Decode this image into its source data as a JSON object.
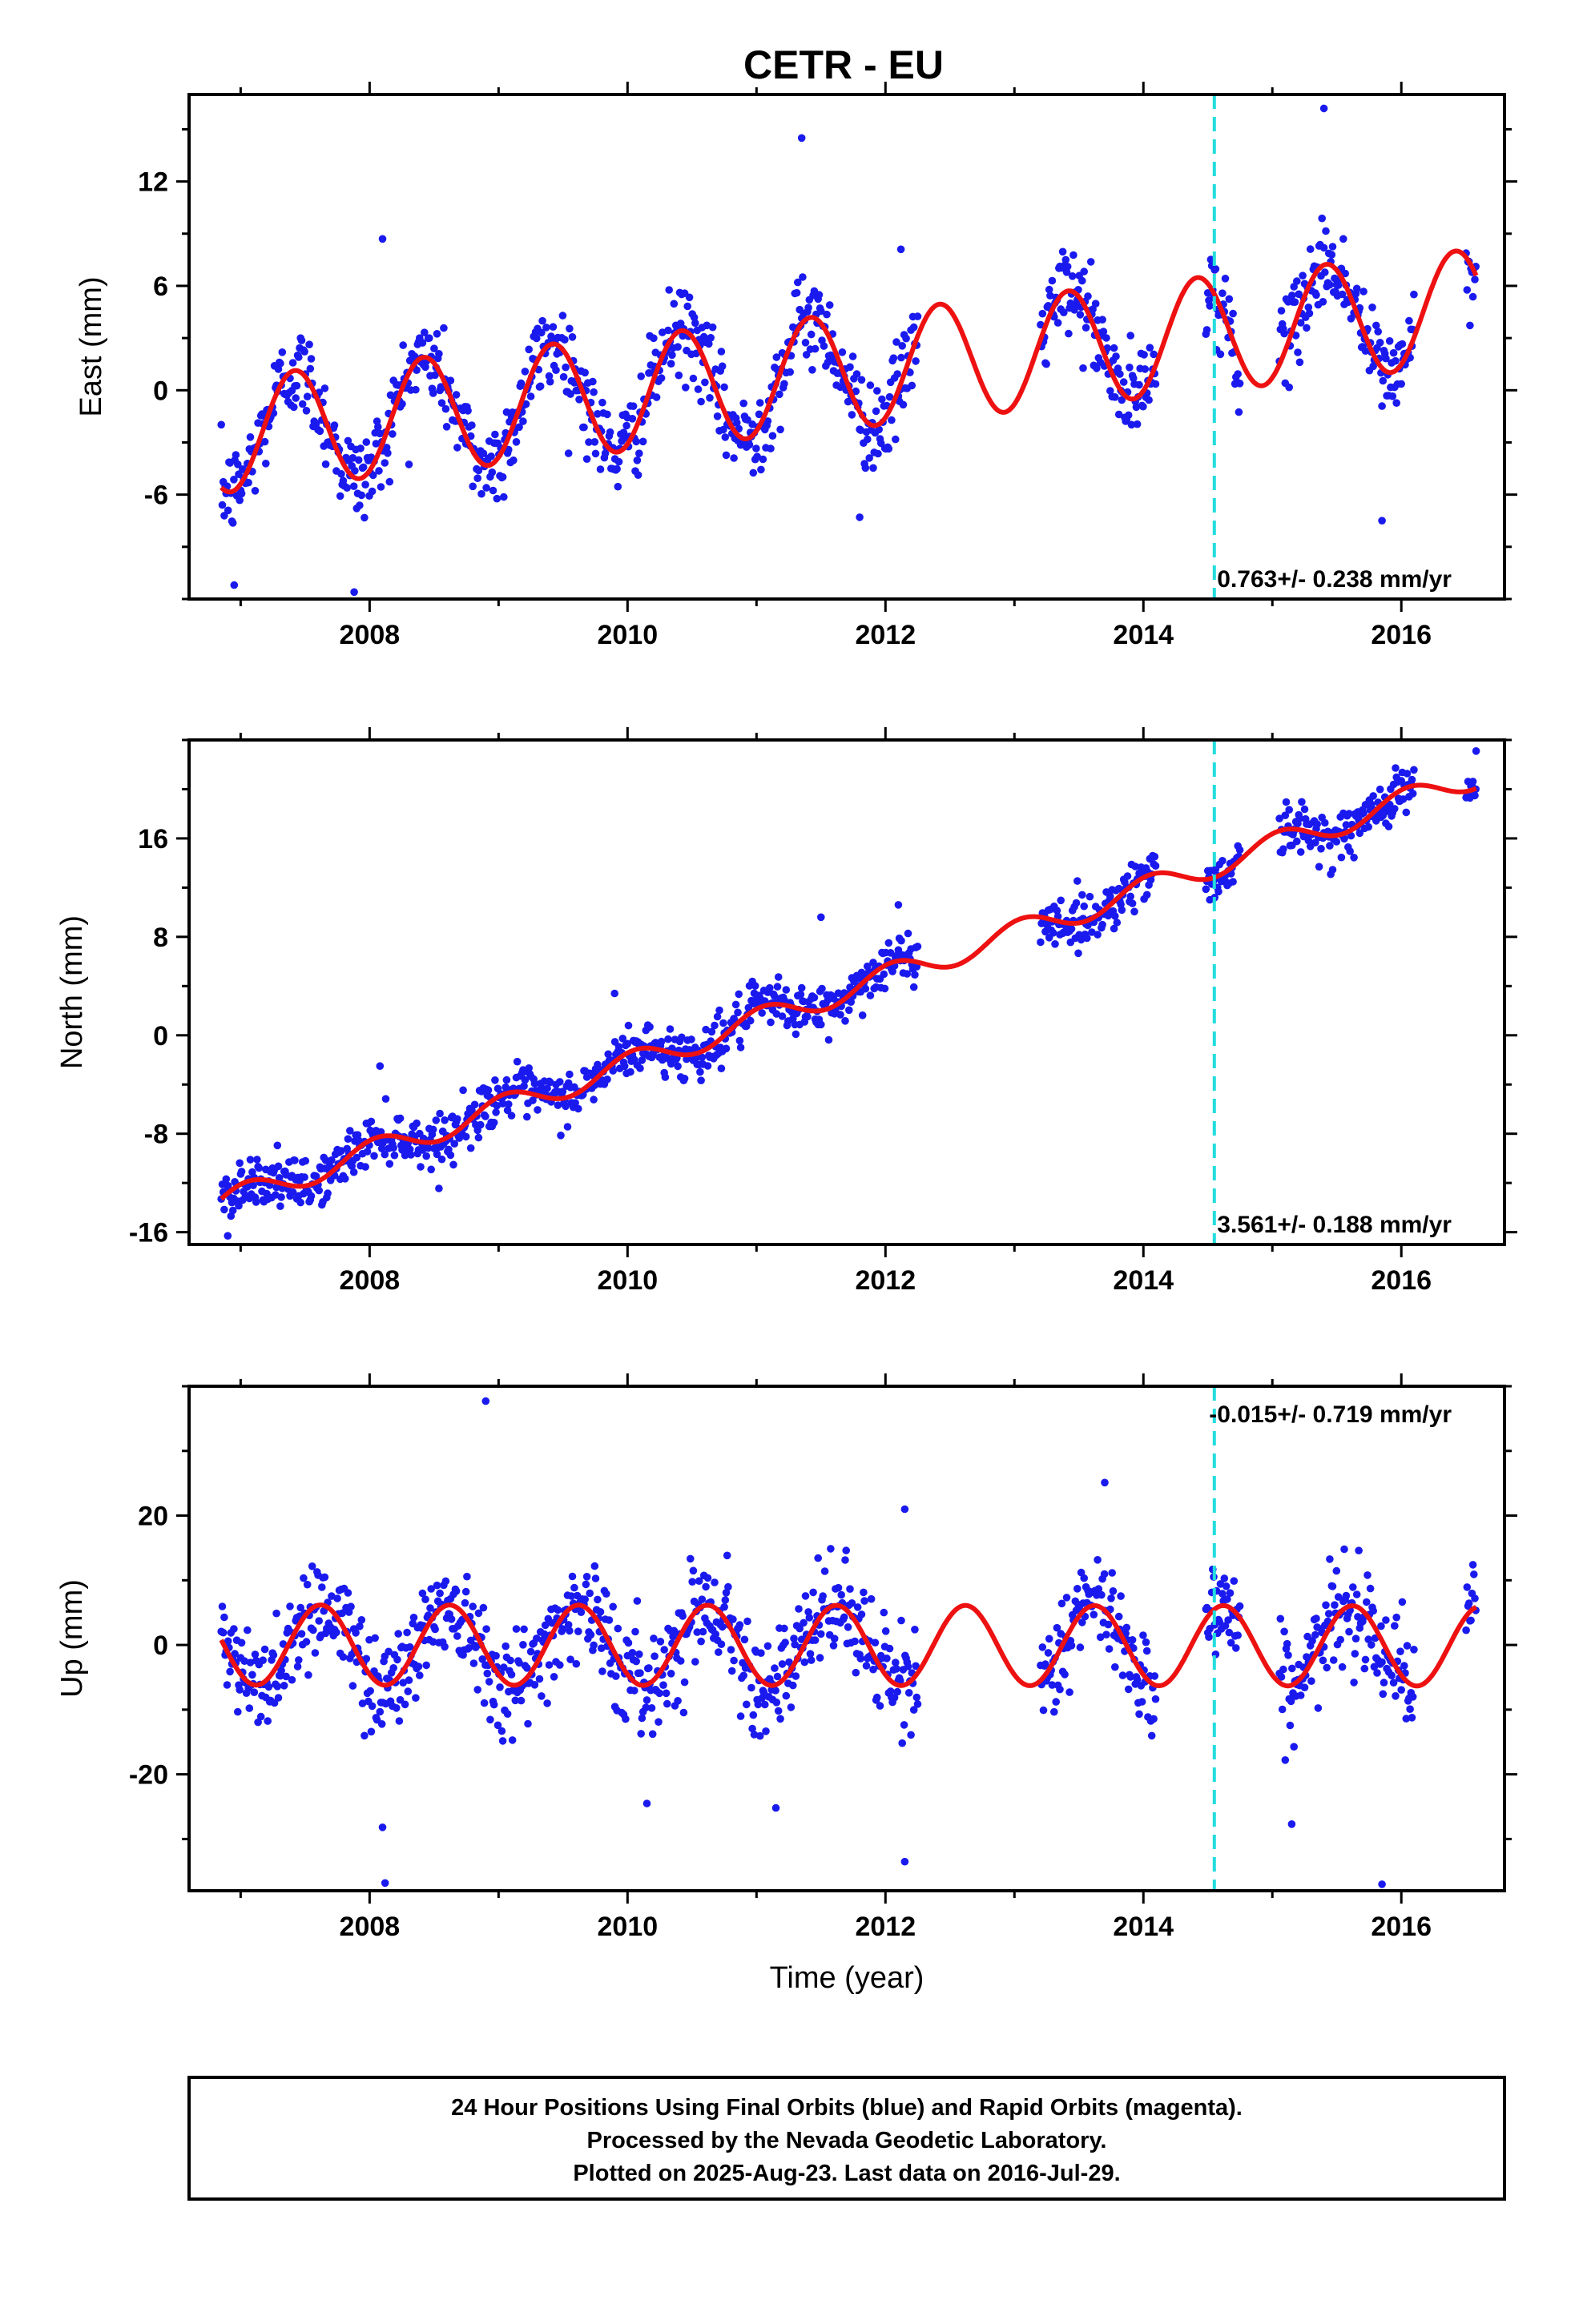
{
  "title": "CETR - EU",
  "colors": {
    "final_orbits": "#1a1aee",
    "model": "#ee1111",
    "event_line": "#22dddd",
    "frame": "#000000"
  },
  "chart_data": [
    {
      "type": "scatter",
      "id": "east",
      "ylabel": "East (mm)",
      "xlabel": "",
      "xlim": [
        2006.6,
        2016.8
      ],
      "ylim": [
        -12,
        17
      ],
      "xticks": [
        2008,
        2010,
        2012,
        2014,
        2016
      ],
      "xtick_labels": [
        "2008",
        "2010",
        "2012",
        "2014",
        "2016"
      ],
      "yticks": [
        -6,
        0,
        6,
        12
      ],
      "ytick_labels": [
        "-6",
        "0",
        "6",
        "12"
      ],
      "rate": "0.763+/- 0.238 mm/yr",
      "rate_position": "bottom-right",
      "event_line_x": 2014.55,
      "model": {
        "mean_at_start": -2.6,
        "slope_mm_per_yr": 0.763,
        "annual_amplitude": 3.3,
        "annual_peak_fraction": 0.42
      },
      "data_gaps": [
        [
          2012.25,
          2013.2
        ],
        [
          2014.1,
          2014.48
        ],
        [
          2014.75,
          2015.05
        ],
        [
          2016.1,
          2016.5
        ]
      ],
      "observed_range": [
        2006.85,
        2016.58
      ],
      "scatter_sigma": 1.3,
      "outliers": [
        [
          2008.1,
          8.7
        ],
        [
          2011.35,
          14.5
        ],
        [
          2015.4,
          16.2
        ],
        [
          2007.88,
          -11.6
        ],
        [
          2006.95,
          -11.2
        ],
        [
          2012.12,
          8.1
        ],
        [
          2011.8,
          -7.3
        ],
        [
          2015.85,
          -7.5
        ]
      ]
    },
    {
      "type": "scatter",
      "id": "north",
      "ylabel": "North (mm)",
      "xlabel": "",
      "xlim": [
        2006.6,
        2016.8
      ],
      "ylim": [
        -17,
        24
      ],
      "xticks": [
        2008,
        2010,
        2012,
        2014,
        2016
      ],
      "xtick_labels": [
        "2008",
        "2010",
        "2012",
        "2014",
        "2016"
      ],
      "yticks": [
        -16,
        -8,
        0,
        8,
        16
      ],
      "ytick_labels": [
        "-16",
        "-8",
        "0",
        "8",
        "16"
      ],
      "rate": "3.561+/- 0.188 mm/yr",
      "rate_position": "bottom-right",
      "event_line_x": 2014.55,
      "model": {
        "mean_at_start": -13.6,
        "slope_mm_per_yr": 3.561,
        "annual_amplitude": 1.0,
        "annual_peak_fraction": 0.05
      },
      "data_gaps": [
        [
          2012.25,
          2013.2
        ],
        [
          2014.1,
          2014.48
        ],
        [
          2014.75,
          2015.05
        ],
        [
          2016.1,
          2016.5
        ]
      ],
      "observed_range": [
        2006.85,
        2016.58
      ],
      "scatter_sigma": 1.0,
      "outliers": [
        [
          2008.08,
          -2.5
        ],
        [
          2011.5,
          9.6
        ],
        [
          2012.1,
          10.6
        ],
        [
          2009.9,
          3.4
        ],
        [
          2016.58,
          23.1
        ],
        [
          2006.9,
          -16.3
        ]
      ]
    },
    {
      "type": "scatter",
      "id": "up",
      "ylabel": "Up (mm)",
      "xlabel": "Time (year)",
      "xlim": [
        2006.6,
        2016.8
      ],
      "ylim": [
        -38,
        40
      ],
      "xticks": [
        2008,
        2010,
        2012,
        2014,
        2016
      ],
      "xtick_labels": [
        "2008",
        "2010",
        "2012",
        "2014",
        "2016"
      ],
      "yticks": [
        -20,
        0,
        20
      ],
      "ytick_labels": [
        "-20",
        "0",
        "20"
      ],
      "rate": "-0.015+/- 0.719 mm/yr",
      "rate_position": "top-right",
      "event_line_x": 2014.55,
      "model": {
        "mean_at_start": 0.0,
        "slope_mm_per_yr": -0.015,
        "annual_amplitude": 6.2,
        "annual_peak_fraction": 0.62
      },
      "data_gaps": [
        [
          2012.25,
          2013.2
        ],
        [
          2014.1,
          2014.48
        ],
        [
          2014.75,
          2015.05
        ],
        [
          2016.1,
          2016.5
        ]
      ],
      "observed_range": [
        2006.85,
        2016.58
      ],
      "scatter_sigma": 4.0,
      "outliers": [
        [
          2008.9,
          37.7
        ],
        [
          2008.1,
          -28.2
        ],
        [
          2008.12,
          -36.8
        ],
        [
          2012.15,
          -33.5
        ],
        [
          2015.85,
          -37.0
        ],
        [
          2015.15,
          -27.7
        ],
        [
          2012.15,
          21.0
        ],
        [
          2013.7,
          25.1
        ],
        [
          2010.15,
          -24.5
        ],
        [
          2011.15,
          -25.2
        ]
      ]
    }
  ],
  "footer": {
    "line1": "24 Hour Positions Using Final Orbits (blue) and Rapid Orbits (magenta).",
    "line2": "Processed by the Nevada Geodetic Laboratory.",
    "line3": "Plotted on 2025-Aug-23. Last data on 2016-Jul-29."
  }
}
